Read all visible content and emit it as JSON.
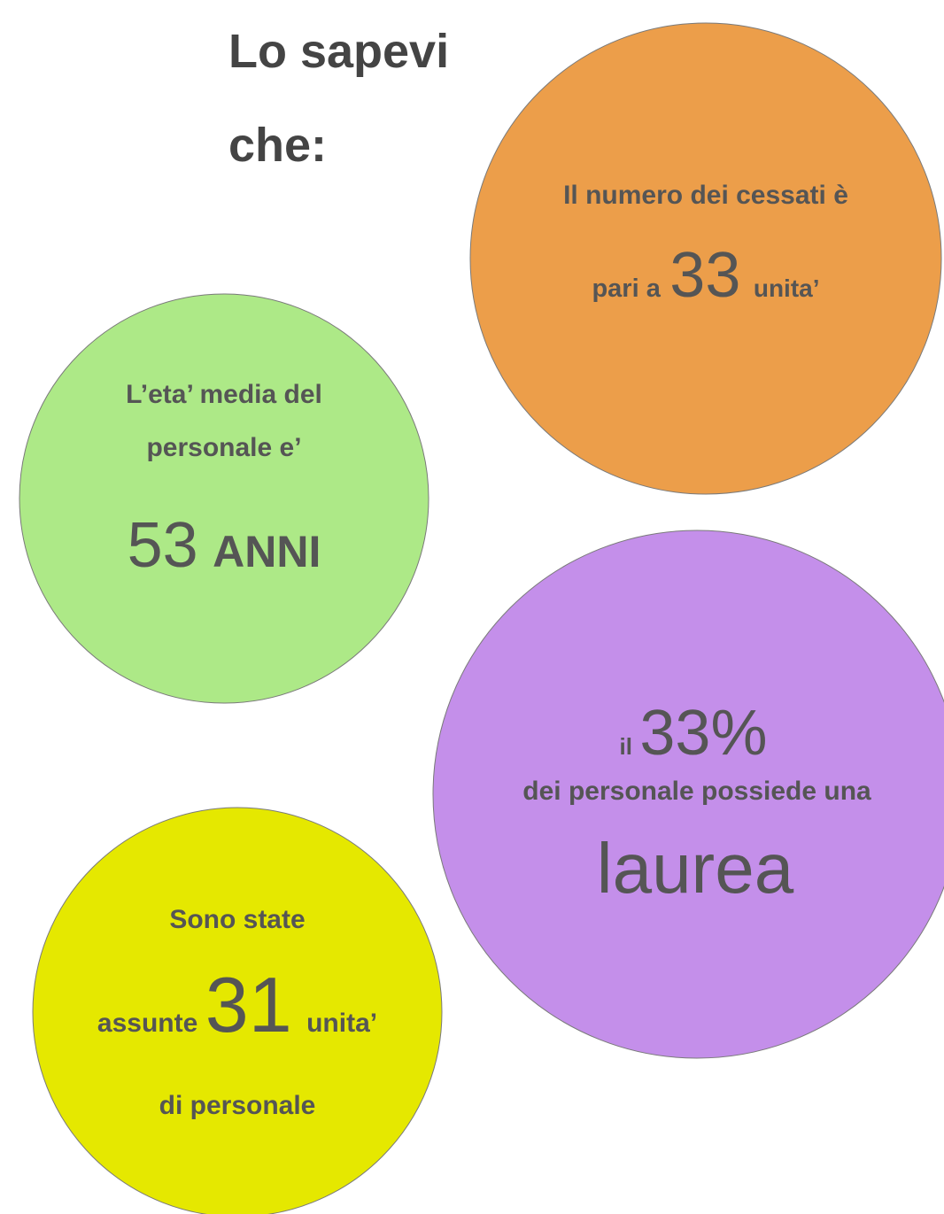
{
  "title": [
    "Lo sapevi",
    "che:"
  ],
  "facts": [
    {
      "lines": [
        [
          "Il numero dei cessati è"
        ],
        [
          "pari a",
          "33",
          "unita’"
        ]
      ]
    },
    {
      "lines": [
        [
          "L’eta’ media del"
        ],
        [
          "personale e’"
        ],
        [
          "53",
          "ANNI"
        ]
      ]
    },
    {
      "lines": [
        [
          "il",
          "33%"
        ],
        [
          "dei personale possiede una"
        ],
        [
          "laurea"
        ]
      ]
    },
    {
      "lines": [
        [
          "Sono state"
        ],
        [
          "assunte",
          "31",
          "unita’"
        ],
        [
          "di personale"
        ]
      ]
    }
  ]
}
